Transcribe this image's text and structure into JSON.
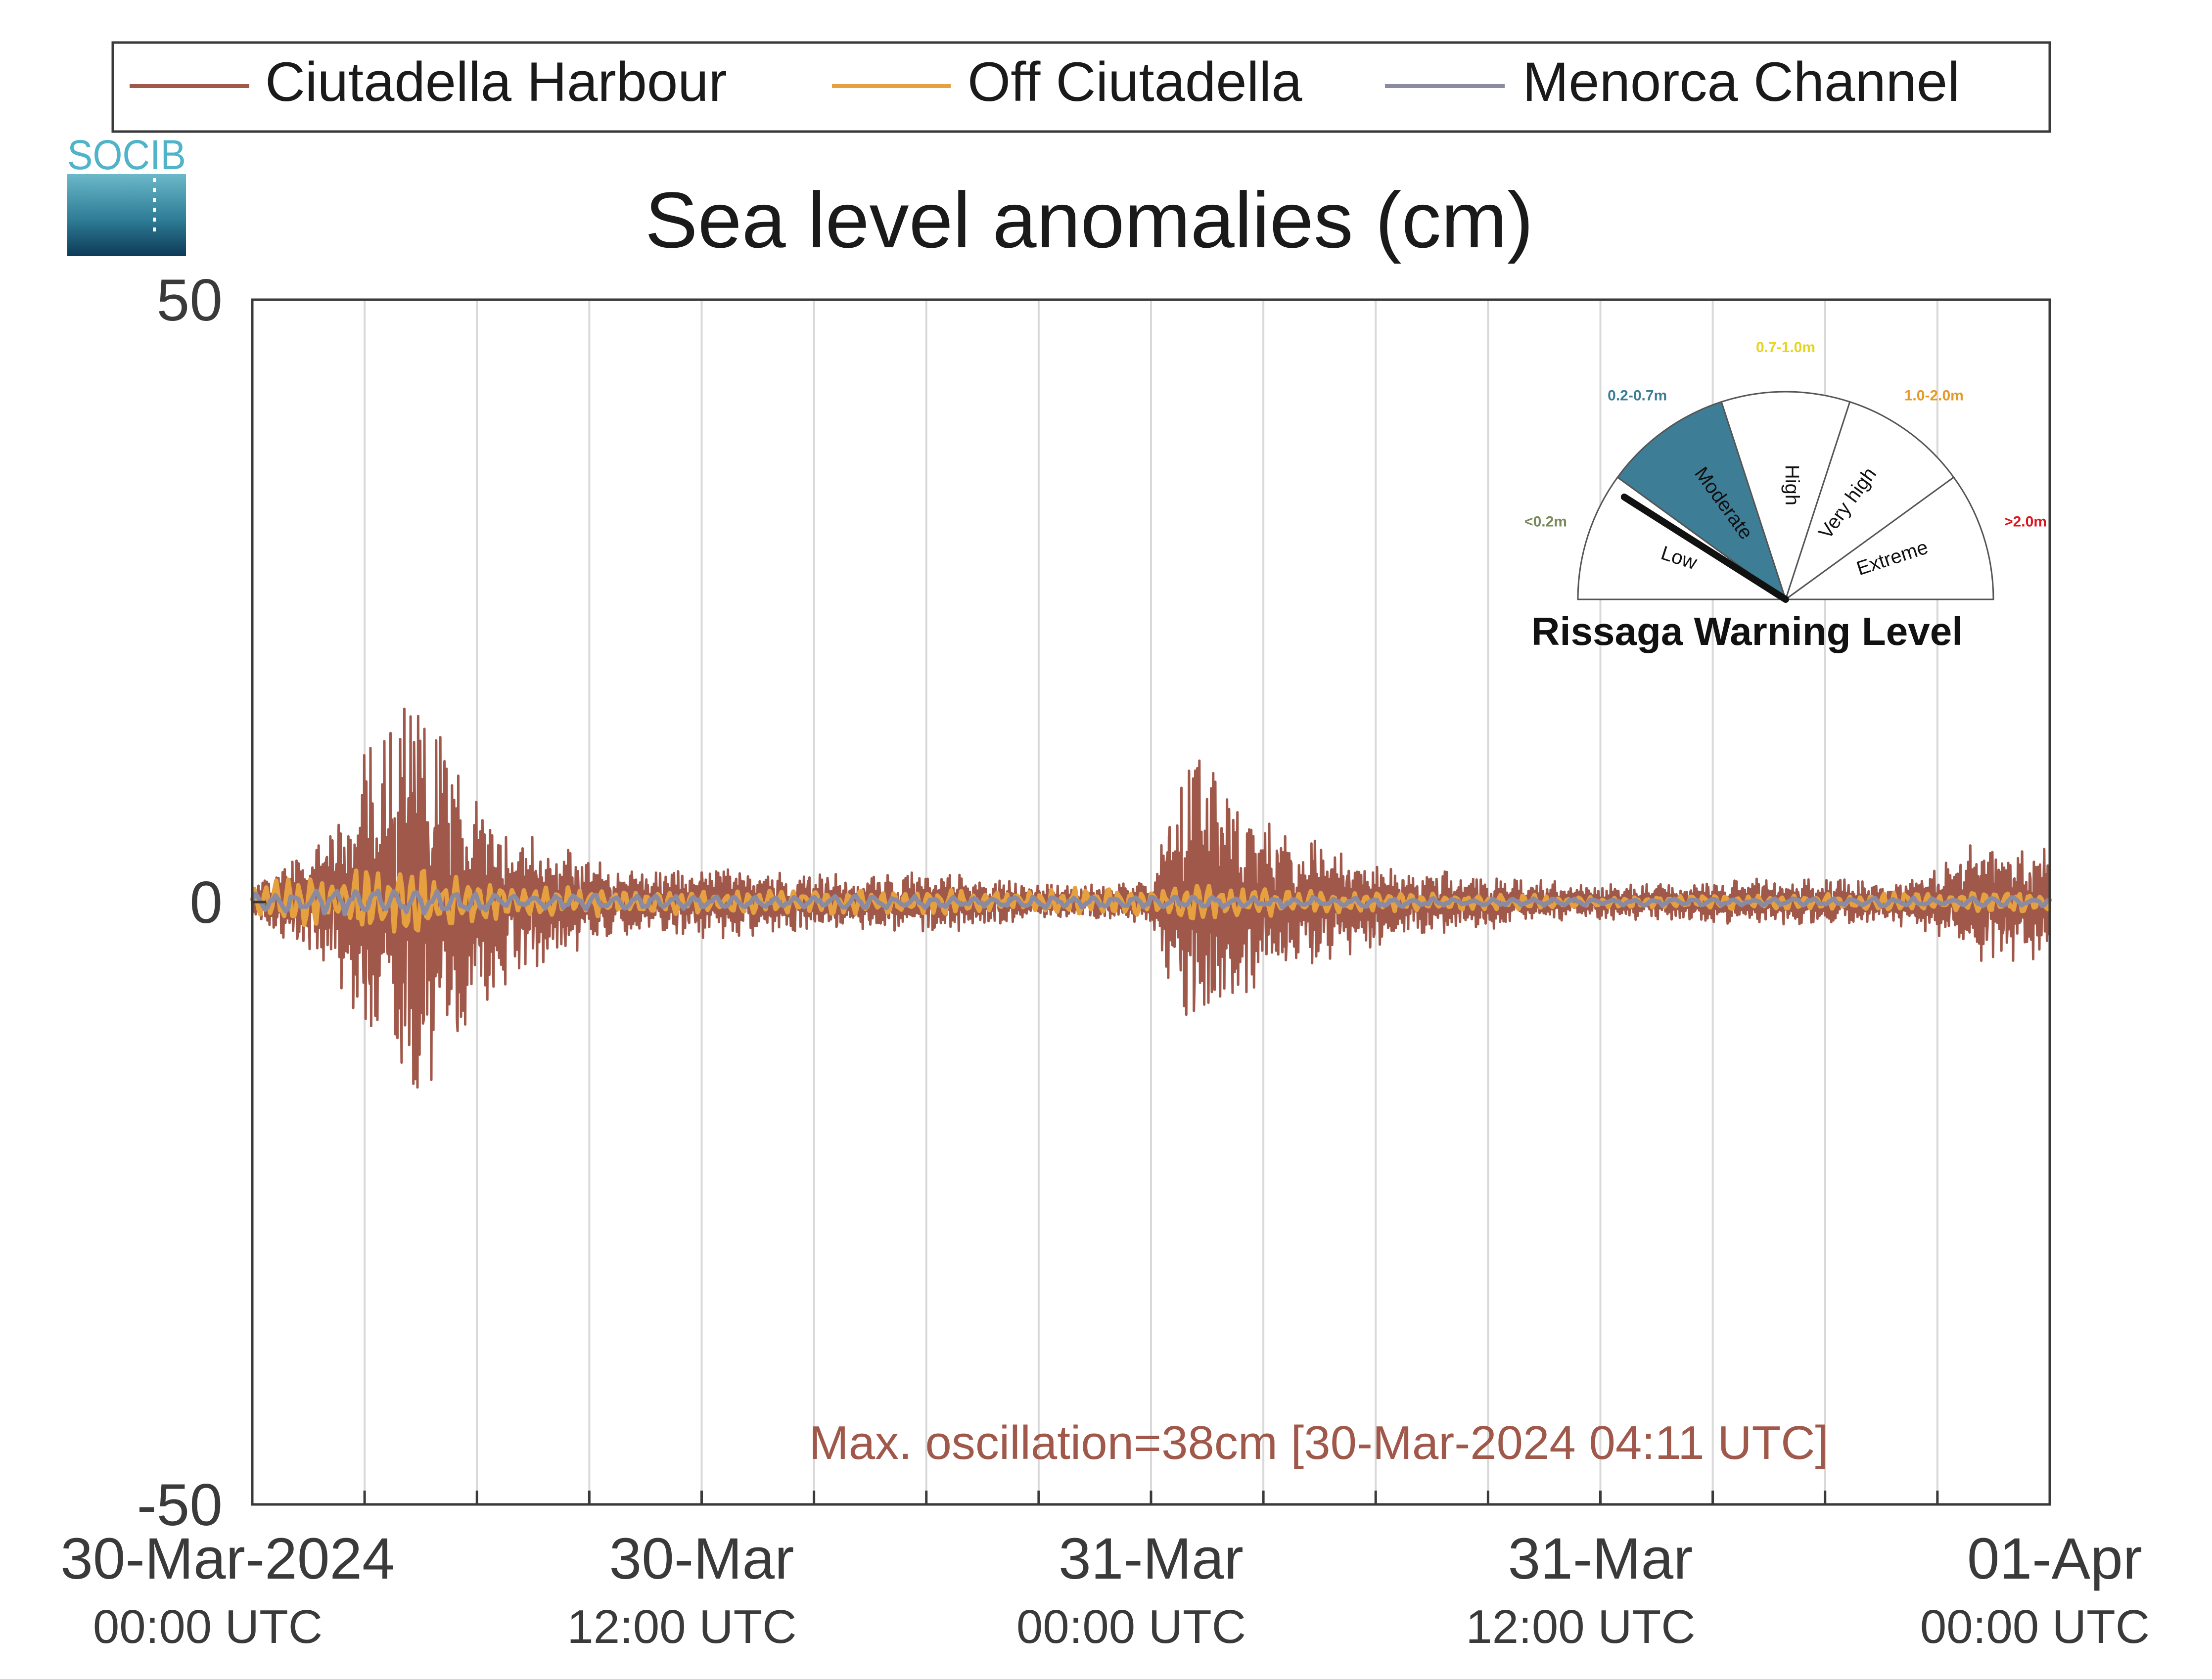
{
  "colors": {
    "harbour": "#a0584a",
    "off": "#e6a040",
    "channel": "#8a8aa0",
    "axis": "#3a3a3a",
    "grid": "#d9d9d9",
    "annotation": "#a0584a",
    "gauge_fill": "#3e7d96"
  },
  "logo": {
    "text": "SOCIB"
  },
  "chart_data": {
    "type": "line",
    "title": "Sea level anomalies (cm)",
    "ylim": [
      -50,
      50
    ],
    "y_ticks": [
      {
        "value": 50,
        "label": "50"
      },
      {
        "value": 0,
        "label": "0"
      },
      {
        "value": -50,
        "label": "-50"
      }
    ],
    "x_range_hours": [
      0,
      48
    ],
    "x_ticks": [
      {
        "hour": 0,
        "line1": "30-Mar-2024",
        "line2": "00:00 UTC"
      },
      {
        "hour": 12,
        "line1": "30-Mar",
        "line2": "12:00 UTC"
      },
      {
        "hour": 24,
        "line1": "31-Mar",
        "line2": "00:00 UTC"
      },
      {
        "hour": 36,
        "line1": "31-Mar",
        "line2": "12:00 UTC"
      },
      {
        "hour": 48,
        "line1": "01-Apr",
        "line2": "00:00 UTC"
      }
    ],
    "grid_hours": [
      3,
      6,
      9,
      12,
      15,
      18,
      21,
      24,
      27,
      30,
      33,
      36,
      39,
      42,
      45
    ],
    "grid": true,
    "legend_position": "top",
    "annotation": "Max. oscillation=38cm [30-Mar-2024 04:11 UTC]",
    "series": [
      {
        "name": "Ciutadella Harbour",
        "color": "#a0584a",
        "envelope_hours": [
          0,
          1,
          2,
          3,
          3.5,
          4,
          4.2,
          5,
          6,
          7,
          8,
          9,
          10,
          11,
          12,
          13,
          14,
          16,
          18,
          19,
          20,
          21,
          22,
          23,
          24,
          24.5,
          25,
          25.7,
          26,
          27,
          28,
          29,
          30,
          31,
          32,
          34,
          36,
          38,
          40,
          42,
          44,
          45,
          46,
          47,
          48
        ],
        "envelope_cm": [
          1,
          4,
          6,
          13,
          15,
          18,
          19,
          15,
          9,
          7,
          5,
          4,
          3,
          3,
          3,
          3,
          2.5,
          2.5,
          2.5,
          2.5,
          2,
          1.5,
          1.5,
          1.5,
          2,
          8,
          12,
          12,
          10,
          7,
          6,
          5,
          4,
          3,
          2.5,
          2,
          1.5,
          1.5,
          2,
          2,
          2,
          3,
          5,
          5,
          5
        ]
      },
      {
        "name": "Off Ciutadella",
        "color": "#e6a040",
        "envelope_hours": [
          0,
          3,
          4,
          6,
          10,
          20,
          25,
          30,
          36,
          40,
          45,
          48
        ],
        "envelope_cm": [
          1.5,
          3,
          3,
          2,
          1,
          1,
          1.5,
          0.8,
          0.5,
          0.6,
          0.8,
          1
        ]
      },
      {
        "name": "Menorca Channel",
        "color": "#8a8aa0",
        "envelope_hours": [
          0,
          4,
          8,
          20,
          24,
          36,
          48
        ],
        "envelope_cm": [
          0.8,
          1.2,
          0.6,
          0.5,
          0.5,
          0.3,
          0.4
        ]
      }
    ]
  },
  "gauge": {
    "title": "Rissaga Warning Level",
    "levels": [
      {
        "name": "Low",
        "range": "<0.2m",
        "range_color": "#7a8a5a"
      },
      {
        "name": "Moderate",
        "range": "0.2-0.7m",
        "range_color": "#3e7d96"
      },
      {
        "name": "High",
        "range": "0.7-1.0m",
        "range_color": "#e8d41e"
      },
      {
        "name": "Very high",
        "range": "1.0-2.0m",
        "range_color": "#e59a28"
      },
      {
        "name": "Extreme",
        "range": ">2.0m",
        "range_color": "#e0141e"
      }
    ],
    "active_level": "Moderate",
    "needle_fraction": 0.18
  }
}
